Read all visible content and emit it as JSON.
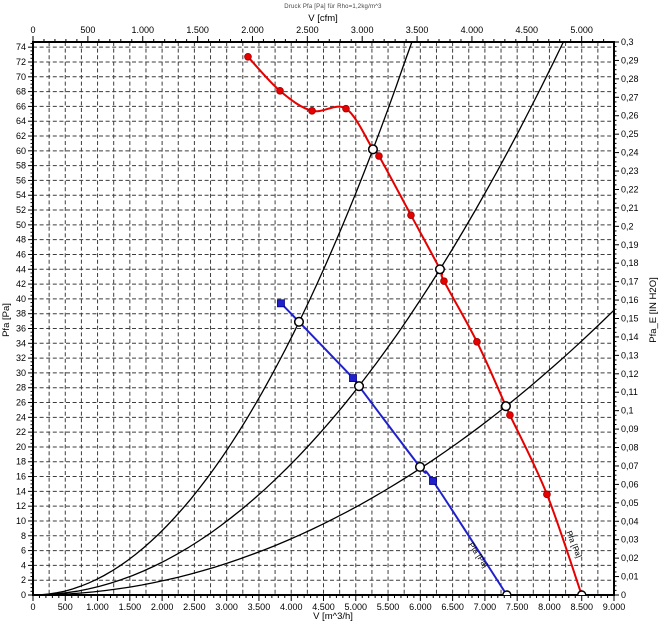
{
  "title": "Druck Pfa [Pa] für Rho=1,2kg/m^3",
  "chart_data": {
    "type": "line",
    "title": "Druck Pfa [Pa] für Rho=1,2kg/m^3",
    "grid": "dashed, vertical every 250 m^3/h, horizontal every 2 Pa",
    "legend_position": "none",
    "axes": {
      "bottom": {
        "label": "V [m^3/h]",
        "min": 0,
        "max": 9000,
        "label_step": 500,
        "grid_step": 250,
        "minor_tick_step": 100,
        "thousands_separator": "."
      },
      "top": {
        "label": "V [cfm]",
        "min": 0,
        "max_label": 5000,
        "label_step": 500,
        "minor_tick_step": 100,
        "m3h_per_cfm": 1.699833,
        "thousands_separator": "."
      },
      "left": {
        "label": "Pfa [Pa]",
        "min": 0,
        "max": 74.7,
        "label_step": 2,
        "grid_step": 2,
        "minor_tick_step": 0.5
      },
      "right": {
        "label": "Pfa_E [IN H2O]",
        "min": 0,
        "max": 0.3,
        "label_step": 0.01,
        "minor_tick_step": 0.0025,
        "decimal_separator": ","
      }
    },
    "series": [
      {
        "name": "fan-curve-red",
        "color": "#e60000",
        "marker": "dot",
        "curve_label": {
          "text": "Pfa [Pa]",
          "x": 8260,
          "y": 8.5,
          "angle": 68
        },
        "path_points": [
          [
            3330,
            72.7
          ],
          [
            3826,
            68.1
          ],
          [
            4322,
            65.4
          ],
          [
            4848,
            65.7
          ],
          [
            5266,
            60.2
          ],
          [
            5359,
            59.3
          ],
          [
            5855,
            51.3
          ],
          [
            6304,
            44.0
          ],
          [
            6366,
            42.4
          ],
          [
            6877,
            34.2
          ],
          [
            7326,
            25.5
          ],
          [
            7388,
            24.3
          ],
          [
            7961,
            13.6
          ],
          [
            8500,
            0
          ]
        ],
        "marker_points": [
          [
            3330,
            72.7
          ],
          [
            3826,
            68.1
          ],
          [
            4322,
            65.4
          ],
          [
            4848,
            65.7
          ],
          [
            5359,
            59.3
          ],
          [
            5855,
            51.3
          ],
          [
            6366,
            42.4
          ],
          [
            6877,
            34.2
          ],
          [
            7388,
            24.3
          ],
          [
            7961,
            13.6
          ]
        ],
        "end_on_axis": 8500
      },
      {
        "name": "fan-curve-blue",
        "color": "#2121cc",
        "marker": "square",
        "curve_label": {
          "text": "Pfa [Pa]",
          "x": 6740,
          "y": 6.8,
          "angle": 56
        },
        "path_points": [
          [
            3841,
            39.4
          ],
          [
            4120,
            36.9
          ],
          [
            4957,
            29.3
          ],
          [
            5050,
            28.2
          ],
          [
            5995,
            17.3
          ],
          [
            6196,
            15.4
          ],
          [
            7340,
            0
          ]
        ],
        "marker_points": [
          [
            3841,
            39.4
          ],
          [
            4957,
            29.3
          ],
          [
            6196,
            15.4
          ]
        ],
        "end_on_axis": 7340
      }
    ],
    "system_curves": [
      {
        "name": "system-curve-1",
        "k_pa_per_m3h2": 2.171e-06,
        "x_end": 5870
      },
      {
        "name": "system-curve-2",
        "k_pa_per_m3h2": 1.107e-06,
        "x_end": 8214
      },
      {
        "name": "system-curve-3",
        "k_pa_per_m3h2": 4.75e-07,
        "x_end": 9000
      }
    ],
    "operating_points": [
      [
        5266,
        60.2
      ],
      [
        6304,
        44.0
      ],
      [
        7326,
        25.5
      ],
      [
        4120,
        36.9
      ],
      [
        5050,
        28.2
      ],
      [
        5995,
        17.3
      ]
    ]
  }
}
